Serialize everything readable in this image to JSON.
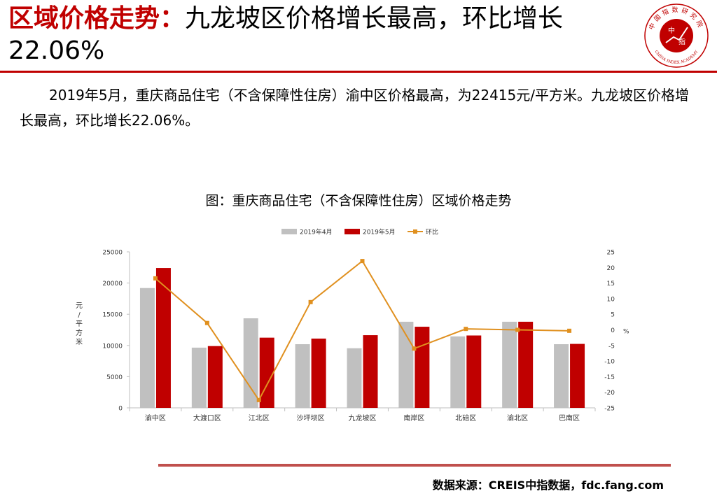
{
  "slide": {
    "title_highlight": "区域价格走势：",
    "title_rest": "九龙坡区价格增长最高，环比增长22.06%",
    "paragraph": "2019年5月，重庆商品住宅（不含保障性住房）渝中区价格最高，为22415元/平方米。九龙坡区价格增长最高，环比增长22.06%。",
    "source": "数据来源：CREIS中指数据，fdc.fang.com"
  },
  "logo": {
    "ring_text": "中国指数研究院",
    "ring_text_en": "CHINA INDEX ACADEMY",
    "center_top": "中",
    "center_bottom": "指"
  },
  "colors": {
    "accent_red": "#c00000",
    "april_bar": "#c0c0c0",
    "may_bar": "#c00000",
    "mom_line": "#e0901f"
  },
  "chart_data": {
    "type": "bar",
    "title": "图：重庆商品住宅（不含保障性住房）区域价格走势",
    "categories": [
      "渝中区",
      "大渡口区",
      "江北区",
      "沙坪坝区",
      "九龙坡区",
      "南岸区",
      "北碚区",
      "渝北区",
      "巴南区"
    ],
    "series": [
      {
        "name": "2019年4月",
        "type": "bar",
        "axis": "left",
        "values": [
          19200,
          9650,
          14350,
          10200,
          9550,
          13800,
          11450,
          13800,
          10200
        ]
      },
      {
        "name": "2019年5月",
        "type": "bar",
        "axis": "left",
        "values": [
          22415,
          9900,
          11250,
          11100,
          11650,
          13000,
          11600,
          13800,
          10250
        ]
      },
      {
        "name": "环比",
        "type": "line",
        "axis": "right",
        "values": [
          16.5,
          2.2,
          -22.5,
          8.9,
          22.06,
          -6.0,
          0.3,
          0.0,
          -0.3
        ]
      }
    ],
    "ylabel": "元/平方米",
    "ylim": [
      0,
      25000
    ],
    "yticks": [
      "0",
      "5000",
      "10000",
      "15000",
      "20000",
      "25000"
    ],
    "y2label": "%",
    "y2lim": [
      -25,
      25
    ],
    "y2ticks": [
      "-25",
      "-20",
      "-15",
      "-10",
      "-5",
      "0",
      "5",
      "10",
      "15",
      "20",
      "25"
    ],
    "legend": "top-center",
    "grid": false
  }
}
